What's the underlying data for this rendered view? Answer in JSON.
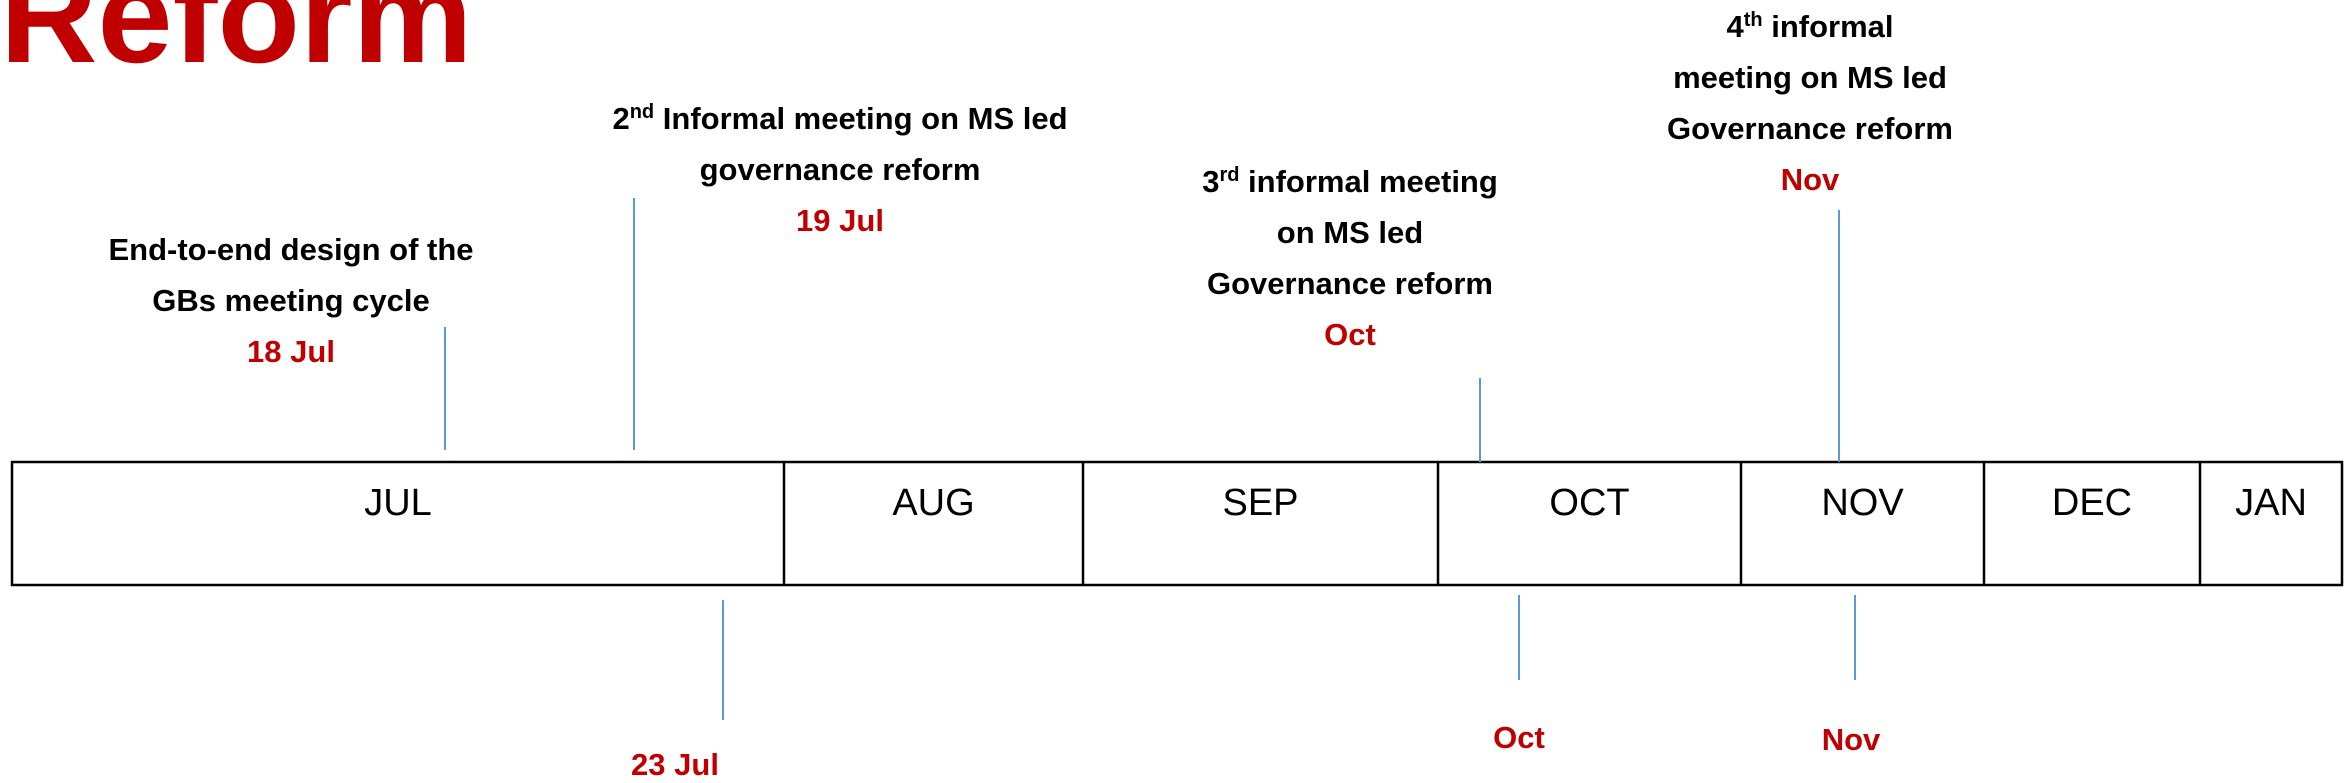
{
  "title": "Reform",
  "months": [
    "JUL",
    "AUG",
    "SEP",
    "OCT",
    "NOV",
    "DEC",
    "JAN"
  ],
  "events_above": [
    {
      "lines": [
        "End-to-end design of the",
        "GBs meeting cycle"
      ],
      "date": "18 Jul"
    },
    {
      "ordinal": "2",
      "sup": "nd",
      "lines": [
        " Informal meeting on MS led",
        "governance reform"
      ],
      "date": "19 Jul"
    },
    {
      "ordinal": "3",
      "sup": "rd",
      "lines": [
        " informal meeting",
        "on MS led",
        "Governance reform"
      ],
      "date": "Oct"
    },
    {
      "ordinal": "4",
      "sup": "th",
      "lines": [
        " informal",
        "meeting on MS led",
        "Governance reform"
      ],
      "date": "Nov"
    }
  ],
  "dates_below": [
    "23 Jul",
    "Oct",
    "Nov"
  ]
}
